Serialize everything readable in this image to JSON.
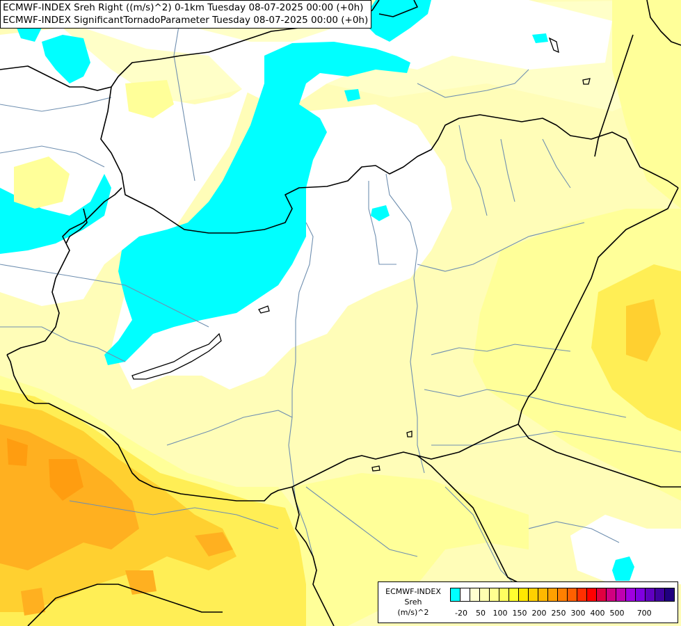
{
  "title": {
    "line1": "ECMWF-INDEX Sreh Right ((m/s)^2) 0-1km Tuesday 08-07-2025 00:00 (+0h)",
    "line2": "ECMWF-INDEX SignificantTornadoParameter Tuesday 08-07-2025 00:00 (+0h)"
  },
  "legend": {
    "source": "ECMWF-INDEX",
    "variable": "Sreh",
    "unit": "(m/s)^2",
    "colors": [
      "#00ffff",
      "#ffffff",
      "#ffffd0",
      "#ffffb0",
      "#ffff90",
      "#ffff60",
      "#ffff30",
      "#ffe800",
      "#ffd000",
      "#ffb800",
      "#ffa000",
      "#ff8000",
      "#ff6000",
      "#ff3000",
      "#ff0000",
      "#e00040",
      "#d00080",
      "#c000b0",
      "#a000e0",
      "#8000e0",
      "#6000c0",
      "#4000a0",
      "#200080"
    ],
    "ticks": [
      "-20",
      "50",
      "100",
      "150",
      "200",
      "250",
      "300",
      "400",
      "500",
      "700"
    ]
  },
  "colors": {
    "cyan": "#00ffff",
    "white": "#ffffff",
    "pale_yellow": "#fffdb8",
    "light_yellow": "#ffff99",
    "yellow": "#ffee55",
    "gold": "#ffd030",
    "orange": "#ffb020",
    "deep_orange": "#ff9d10",
    "rivers": "#6f8fb0",
    "borders": "#000000"
  }
}
